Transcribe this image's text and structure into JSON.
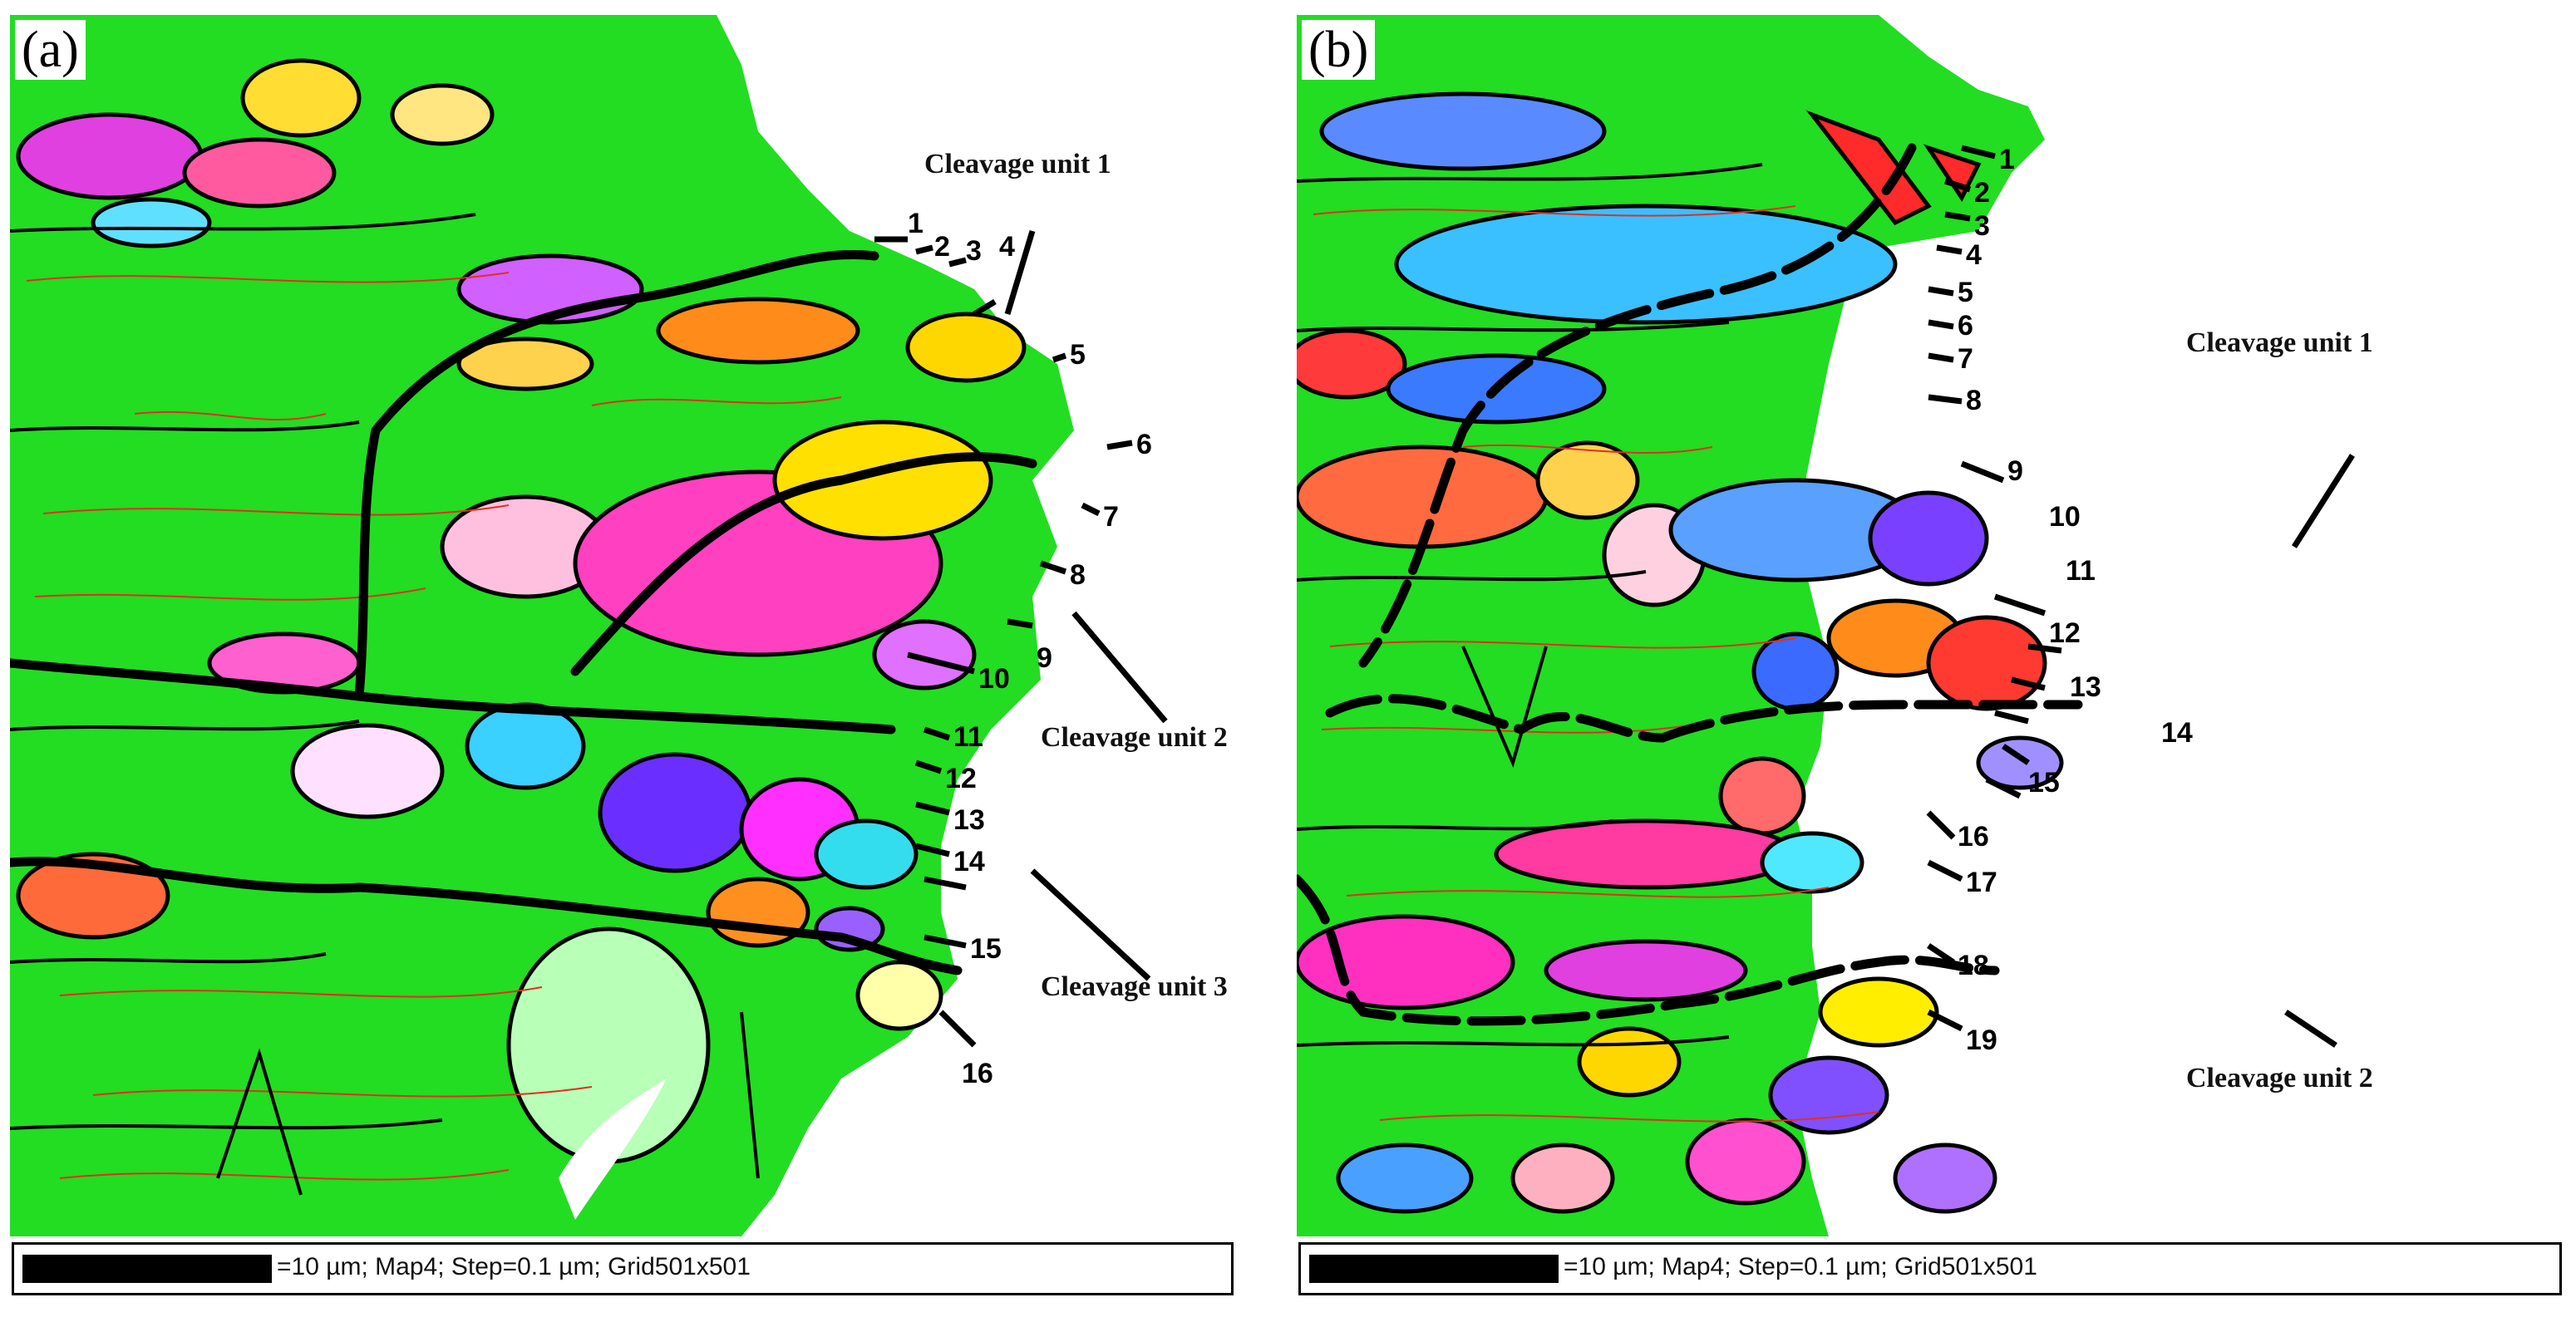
{
  "figure": {
    "panels": [
      {
        "id": "a",
        "label": "(a)",
        "scalebar_text": "=10 µm; Map4; Step=0.1 µm; Grid501x501",
        "cleavage_units": [
          "Cleavage unit 1",
          "Cleavage unit 2",
          "Cleavage unit 3"
        ],
        "markers": [
          "1",
          "2",
          "3",
          "4",
          "5",
          "6",
          "7",
          "8",
          "9",
          "10",
          "11",
          "12",
          "13",
          "14",
          "15",
          "16"
        ]
      },
      {
        "id": "b",
        "label": "(b)",
        "scalebar_text": "=10 µm; Map4; Step=0.1 µm; Grid501x501",
        "cleavage_units": [
          "Cleavage unit 1",
          "Cleavage unit 2"
        ],
        "markers": [
          "1",
          "2",
          "3",
          "4",
          "5",
          "6",
          "7",
          "8",
          "9",
          "10",
          "11",
          "12",
          "13",
          "14",
          "15",
          "16",
          "17",
          "18",
          "19"
        ]
      }
    ]
  },
  "colors": {
    "matrix_green": "#22dd22",
    "grain_boundary": "#000000",
    "subgrain_boundary": "#e03020",
    "background": "#ffffff"
  }
}
